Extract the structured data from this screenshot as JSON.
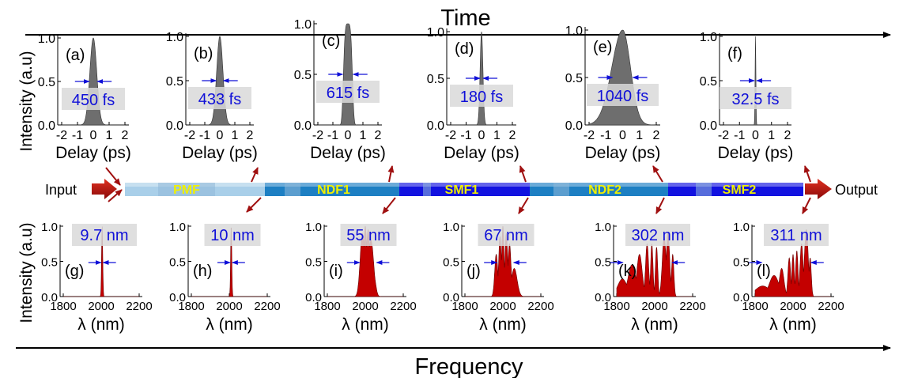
{
  "header": {
    "top_label": "Time",
    "bottom_label": "Frequency"
  },
  "fiber": {
    "input_label": "Input",
    "output_label": "Output",
    "segments": [
      "PMF",
      "NDF1",
      "SMF1",
      "NDF2",
      "SMF2"
    ]
  },
  "top_axes": {
    "ylabel": "Intensity (a.u)",
    "xlabel": "Delay (ps)",
    "xticks": [
      "-2",
      "-1",
      "0",
      "1",
      "2"
    ],
    "yticks": [
      "0.0",
      "0.5",
      "1.0"
    ]
  },
  "bottom_axes": {
    "ylabel": "Intensity (a.u)",
    "xlabel": "λ (nm)",
    "xticks": [
      "1800",
      "2000",
      "2200"
    ],
    "yticks": [
      "0.0",
      "0.5",
      "1.0"
    ]
  },
  "colors": {
    "pulse_fill": "#6e6e6e",
    "spectrum_fill": "#c40000",
    "annotation_text": "#1010d8",
    "fiber_light": "#a9cfe9",
    "fiber_mid": "#1d7fc3",
    "fiber_dark": "#1212e0",
    "segment_text": "#f0f000",
    "arrow": "#a01010"
  },
  "pulses": [
    {
      "tag": "(a)",
      "fwhm": "450 fs"
    },
    {
      "tag": "(b)",
      "fwhm": "433 fs"
    },
    {
      "tag": "(c)",
      "fwhm": "615 fs"
    },
    {
      "tag": "(d)",
      "fwhm": "180 fs"
    },
    {
      "tag": "(e)",
      "fwhm": "1040 fs"
    },
    {
      "tag": "(f)",
      "fwhm": "32.5 fs"
    }
  ],
  "spectra": [
    {
      "tag": "(g)",
      "width": "9.7 nm"
    },
    {
      "tag": "(h)",
      "width": "10 nm"
    },
    {
      "tag": "(i)",
      "width": "55 nm"
    },
    {
      "tag": "(j)",
      "width": "67 nm"
    },
    {
      "tag": "(k)",
      "width": "302 nm"
    },
    {
      "tag": "(l)",
      "width": "311 nm"
    }
  ]
}
